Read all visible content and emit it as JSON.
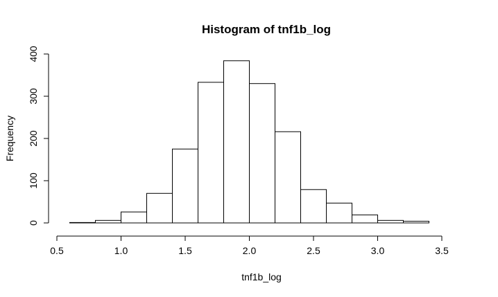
{
  "chart_data": {
    "type": "bar",
    "title": "Histogram of tnf1b_log",
    "xlabel": "tnf1b_log",
    "ylabel": "Frequency",
    "bin_edges": [
      0.6,
      0.8,
      1.0,
      1.2,
      1.4,
      1.6,
      1.8,
      2.0,
      2.2,
      2.4,
      2.6,
      2.8,
      3.0,
      3.2,
      3.4
    ],
    "values": [
      1,
      6,
      26,
      70,
      175,
      333,
      384,
      330,
      216,
      79,
      47,
      19,
      6,
      4
    ],
    "xlim": [
      0.5,
      3.5
    ],
    "ylim": [
      0,
      400
    ],
    "x_ticks": [
      "0.5",
      "1.0",
      "1.5",
      "2.0",
      "2.5",
      "3.0",
      "3.5"
    ],
    "y_ticks": [
      "0",
      "100",
      "200",
      "300",
      "400"
    ],
    "grid": false,
    "legend": "none",
    "colors": {
      "bar_fill": "#ffffff",
      "bar_stroke": "#000000",
      "axis": "#000000"
    }
  }
}
